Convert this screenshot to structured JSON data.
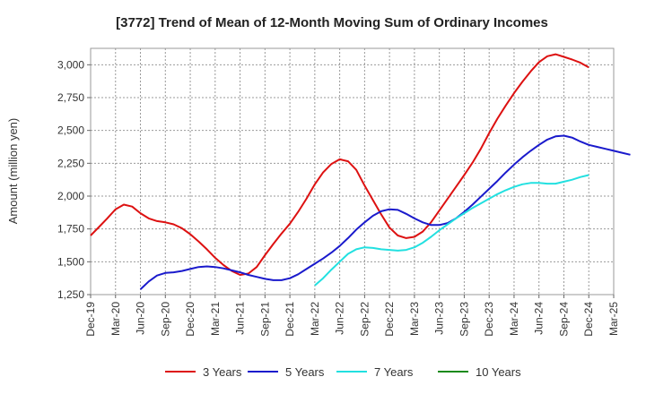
{
  "chart_data": {
    "type": "line",
    "title": "[3772]  Trend of Mean of 12-Month Moving Sum of Ordinary Incomes",
    "xlabel": "",
    "ylabel": "Amount (million yen)",
    "ylim": [
      1250,
      3125
    ],
    "yticks": [
      1250,
      1500,
      1750,
      2000,
      2250,
      2500,
      2750,
      3000
    ],
    "ytick_labels": [
      "1,250",
      "1,500",
      "1,750",
      "2,000",
      "2,250",
      "2,500",
      "2,750",
      "3,000"
    ],
    "x_tick_labels": [
      "Dec-19",
      "Mar-20",
      "Jun-20",
      "Sep-20",
      "Dec-20",
      "Mar-21",
      "Jun-21",
      "Sep-21",
      "Dec-21",
      "Mar-22",
      "Jun-22",
      "Sep-22",
      "Dec-22",
      "Mar-23",
      "Jun-23",
      "Sep-23",
      "Dec-23",
      "Mar-24",
      "Jun-24",
      "Sep-24",
      "Dec-24",
      "Mar-25"
    ],
    "grid": true,
    "legend_position": "bottom",
    "series": [
      {
        "name": "3 Years",
        "color": "#dd1111",
        "start_index": 0,
        "values": [
          1700,
          1765,
          1830,
          1900,
          1935,
          1920,
          1870,
          1830,
          1810,
          1800,
          1785,
          1755,
          1710,
          1655,
          1595,
          1530,
          1475,
          1430,
          1400,
          1410,
          1460,
          1550,
          1635,
          1715,
          1790,
          1880,
          1980,
          2090,
          2180,
          2245,
          2280,
          2265,
          2200,
          2080,
          1970,
          1860,
          1760,
          1700,
          1680,
          1690,
          1730,
          1800,
          1890,
          1980,
          2070,
          2160,
          2255,
          2360,
          2480,
          2590,
          2690,
          2785,
          2870,
          2950,
          3020,
          3065,
          3080,
          3060,
          3040,
          3015,
          2980
        ]
      },
      {
        "name": "5 Years",
        "color": "#1a1acc",
        "start_index": 6,
        "values": [
          1290,
          1350,
          1395,
          1415,
          1420,
          1430,
          1445,
          1460,
          1465,
          1460,
          1450,
          1435,
          1420,
          1400,
          1385,
          1370,
          1360,
          1360,
          1375,
          1405,
          1445,
          1485,
          1525,
          1570,
          1620,
          1680,
          1745,
          1800,
          1850,
          1885,
          1900,
          1895,
          1865,
          1830,
          1800,
          1780,
          1780,
          1795,
          1830,
          1880,
          1935,
          1995,
          2055,
          2115,
          2180,
          2240,
          2295,
          2345,
          2390,
          2430,
          2455,
          2460,
          2445,
          2415,
          2390,
          2375,
          2360,
          2345,
          2330,
          2315
        ]
      },
      {
        "name": "7 Years",
        "color": "#22e0e0",
        "start_index": 27,
        "values": [
          1320,
          1375,
          1440,
          1500,
          1560,
          1595,
          1610,
          1605,
          1595,
          1590,
          1585,
          1590,
          1610,
          1645,
          1690,
          1740,
          1785,
          1830,
          1870,
          1910,
          1945,
          1980,
          2015,
          2045,
          2070,
          2090,
          2100,
          2100,
          2095,
          2095,
          2110,
          2125,
          2145,
          2160
        ]
      },
      {
        "name": "10 Years",
        "color": "#1a8a1a",
        "start_index": 0,
        "values": []
      }
    ]
  }
}
